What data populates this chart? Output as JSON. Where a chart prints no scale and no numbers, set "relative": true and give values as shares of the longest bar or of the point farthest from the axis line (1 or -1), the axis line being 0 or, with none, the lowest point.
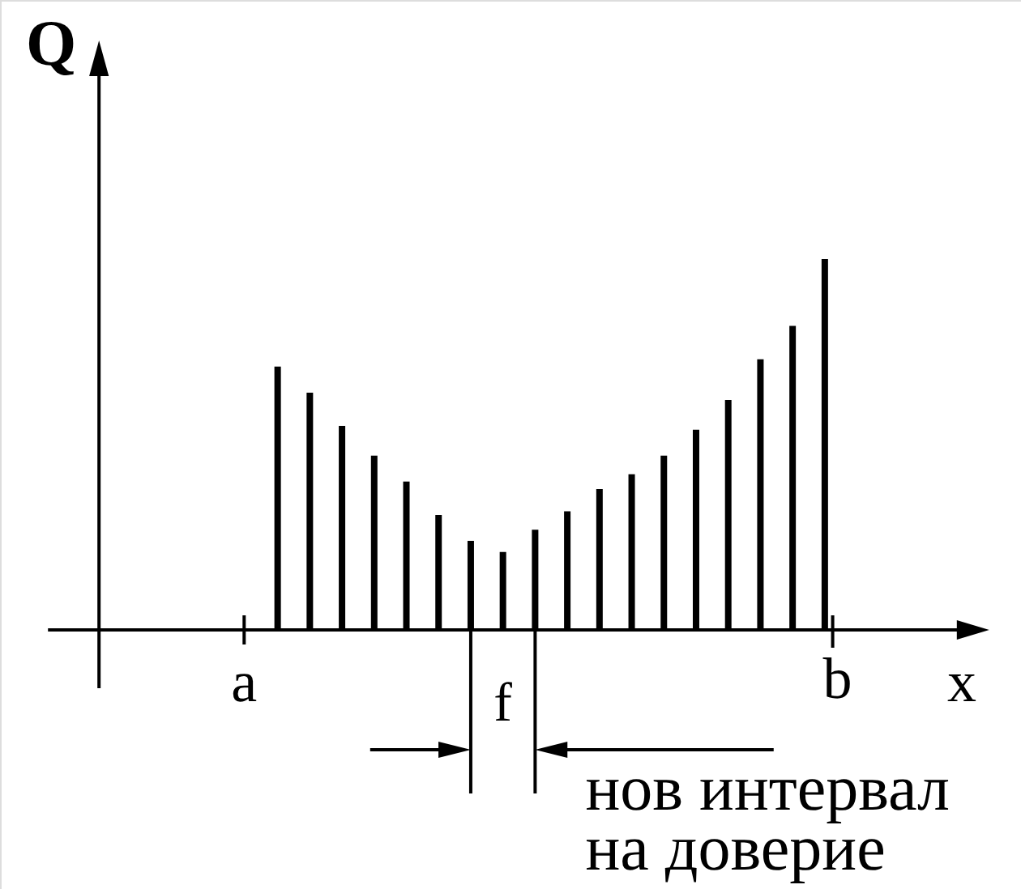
{
  "chart_data": {
    "type": "bar",
    "relative": true,
    "color": "#000000",
    "categories": [
      null,
      null,
      null,
      null,
      null,
      null,
      null,
      null,
      null,
      null,
      null,
      null,
      null,
      null,
      null,
      null,
      null,
      null
    ],
    "values": [
      0.71,
      0.64,
      0.55,
      0.47,
      0.4,
      0.31,
      0.24,
      0.21,
      0.27,
      0.32,
      0.38,
      0.42,
      0.47,
      0.54,
      0.62,
      0.73,
      0.82,
      1
    ],
    "xlabel": "x",
    "ylabel": "Q",
    "annotations": [
      "a",
      "b",
      "f",
      "нов интервал на доверие"
    ]
  }
}
